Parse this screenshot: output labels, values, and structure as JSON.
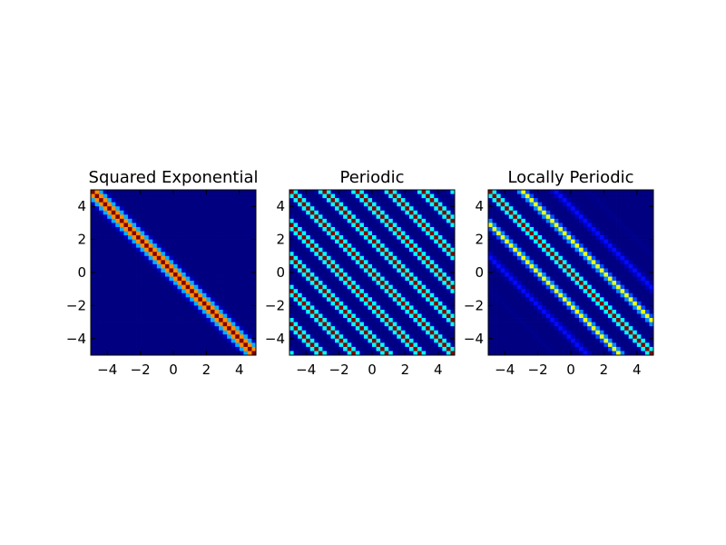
{
  "chart_data": [
    {
      "type": "heatmap",
      "title": "Squared Exponential",
      "kernel": "squared_exponential",
      "params": {
        "length_scale": 0.32
      },
      "xlim": [
        -5,
        5
      ],
      "ylim": [
        -5,
        5
      ],
      "xticks": [
        -4,
        -2,
        0,
        2,
        4
      ],
      "yticks": [
        -4,
        -2,
        0,
        2,
        4
      ],
      "xtick_labels": [
        "−4",
        "−2",
        "0",
        "2",
        "4"
      ],
      "ytick_labels": [
        "−4",
        "−2",
        "0",
        "2",
        "4"
      ],
      "colormap": "jet",
      "value_range": [
        0,
        1
      ],
      "diagonal": "anti-diagonal (top-left to bottom-right)"
    },
    {
      "type": "heatmap",
      "title": "Periodic",
      "kernel": "periodic",
      "params": {
        "period": 2.0,
        "length_scale": 0.55
      },
      "xlim": [
        -5,
        5
      ],
      "ylim": [
        -5,
        5
      ],
      "xticks": [
        -4,
        -2,
        0,
        2,
        4
      ],
      "yticks": [
        -4,
        -2,
        0,
        2,
        4
      ],
      "xtick_labels": [
        "−4",
        "−2",
        "0",
        "2",
        "4"
      ],
      "ytick_labels": [
        "−4",
        "−2",
        "0",
        "2",
        "4"
      ],
      "colormap": "jet",
      "value_range": [
        0,
        1
      ]
    },
    {
      "type": "heatmap",
      "title": "Locally Periodic",
      "kernel": "locally_periodic",
      "params": {
        "period": 2.0,
        "length_scale": 0.55,
        "envelope_scale": 2.0
      },
      "xlim": [
        -5,
        5
      ],
      "ylim": [
        -5,
        5
      ],
      "xticks": [
        -4,
        -2,
        0,
        2,
        4
      ],
      "yticks": [
        -4,
        -2,
        0,
        2,
        4
      ],
      "xtick_labels": [
        "−4",
        "−2",
        "0",
        "2",
        "4"
      ],
      "ytick_labels": [
        "−4",
        "−2",
        "0",
        "2",
        "4"
      ],
      "colormap": "jet",
      "value_range": [
        0,
        1
      ]
    }
  ],
  "colors": {
    "background": "#ffffff",
    "axes_edge": "#000000"
  }
}
